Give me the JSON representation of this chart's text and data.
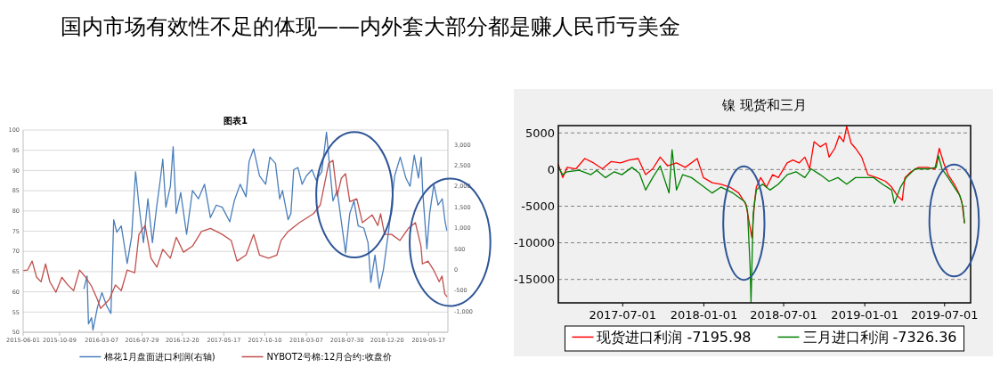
{
  "chart_data": [
    {
      "type": "line",
      "title": "图表1",
      "annotations": [
        "国内市场有效性不足的体现——内外套大部分都是赚人民币亏美金"
      ],
      "xlim": [
        "2015-06-01",
        "2019-07-25"
      ],
      "xticks": [
        "2015-06-01",
        "2015-10-09",
        "2016-03-07",
        "2016-07-29",
        "2016-12-20",
        "2017-05-17",
        "2017-10-10",
        "2018-03-07",
        "2018-07-30",
        "2018-12-20",
        "2019-05-17"
      ],
      "ylim": [
        50,
        100
      ],
      "yticks": [
        50,
        55,
        60,
        65,
        70,
        75,
        80,
        85,
        90,
        95,
        100
      ],
      "y2lim": [
        -1500,
        3350
      ],
      "y2ticks": [
        {
          "value": -1000,
          "label": "-1,000"
        },
        {
          "value": -500,
          "label": "-500"
        },
        {
          "value": 0,
          "label": "0"
        },
        {
          "value": 500,
          "label": "500"
        },
        {
          "value": 1000,
          "label": "1,000"
        },
        {
          "value": 1500,
          "label": "1,500"
        },
        {
          "value": 2000,
          "label": "2,000"
        },
        {
          "value": 2500,
          "label": "2,500"
        },
        {
          "value": 3000,
          "label": "3,000"
        }
      ],
      "grid": "y",
      "legend": "bottom",
      "series": [
        {
          "name": "棉花1月盘面进口利润(右轴)",
          "color": "#4a7ebb",
          "axis": "y2",
          "x": [
            "2016-01-04",
            "2016-01-15",
            "2016-01-20",
            "2016-01-31",
            "2016-02-05",
            "2016-02-21",
            "2016-03-08",
            "2016-03-24",
            "2016-04-09",
            "2016-04-19",
            "2016-04-30",
            "2016-05-16",
            "2016-06-06",
            "2016-06-22",
            "2016-07-06",
            "2016-07-18",
            "2016-08-03",
            "2016-08-19",
            "2016-09-04",
            "2016-09-20",
            "2016-10-01",
            "2016-10-11",
            "2016-10-22",
            "2016-11-07",
            "2016-11-17",
            "2016-11-28",
            "2016-12-14",
            "2017-01-04",
            "2017-01-25",
            "2017-02-15",
            "2017-03-09",
            "2017-03-30",
            "2017-04-20",
            "2017-05-11",
            "2017-06-07",
            "2017-06-23",
            "2017-07-14",
            "2017-08-04",
            "2017-08-15",
            "2017-08-31",
            "2017-09-21",
            "2017-10-13",
            "2017-10-28",
            "2017-11-17",
            "2017-12-02",
            "2017-12-12",
            "2018-01-01",
            "2018-01-11",
            "2018-01-21",
            "2018-02-05",
            "2018-02-20",
            "2018-03-07",
            "2018-03-27",
            "2018-04-11",
            "2018-05-01",
            "2018-05-18",
            "2018-05-26",
            "2018-06-10",
            "2018-06-25",
            "2018-07-10",
            "2018-07-25",
            "2018-08-09",
            "2018-08-24",
            "2018-09-08",
            "2018-09-28",
            "2018-10-13",
            "2018-10-23",
            "2018-11-07",
            "2018-11-22",
            "2018-12-07",
            "2018-12-27",
            "2019-01-16",
            "2019-02-05",
            "2019-02-25",
            "2019-03-12",
            "2019-03-27",
            "2019-04-11",
            "2019-04-21",
            "2019-04-26",
            "2019-05-11",
            "2019-05-21",
            "2019-06-05",
            "2019-06-20",
            "2019-07-05",
            "2019-07-15",
            "2019-07-21"
          ],
          "values": [
            -450,
            -150,
            -1300,
            -1150,
            -1450,
            -900,
            -550,
            -850,
            -1050,
            1200,
            900,
            1050,
            150,
            800,
            2350,
            1550,
            650,
            1700,
            650,
            1550,
            2100,
            2650,
            1500,
            2000,
            2950,
            1350,
            1850,
            850,
            1900,
            1700,
            2050,
            1250,
            1550,
            1500,
            1150,
            1650,
            2050,
            1750,
            2600,
            2900,
            2250,
            2050,
            2700,
            2550,
            1700,
            1900,
            1200,
            1350,
            2400,
            2450,
            2050,
            2250,
            2400,
            2150,
            2350,
            3300,
            2700,
            1650,
            1900,
            1150,
            400,
            1350,
            1650,
            1050,
            1000,
            650,
            -300,
            350,
            -450,
            0,
            1000,
            2250,
            2700,
            2200,
            2000,
            2750,
            2200,
            2700,
            1900,
            500,
            1350,
            2050,
            1550,
            1700,
            1150,
            950
          ]
        },
        {
          "name": "NYBOT2号棉:12月合约:收盘价",
          "color": "#c0504d",
          "x": [
            "2015-06-01",
            "2015-06-17",
            "2015-07-03",
            "2015-07-19",
            "2015-08-04",
            "2015-08-20",
            "2015-09-04",
            "2015-09-26",
            "2015-10-17",
            "2015-11-07",
            "2015-11-28",
            "2015-12-19",
            "2016-01-10",
            "2016-01-31",
            "2016-02-21",
            "2016-03-03",
            "2016-04-03",
            "2016-04-25",
            "2016-05-16",
            "2016-06-06",
            "2016-07-03",
            "2016-07-18",
            "2016-08-09",
            "2016-08-30",
            "2016-09-20",
            "2016-10-11",
            "2016-11-07",
            "2016-11-28",
            "2016-12-24",
            "2017-01-25",
            "2017-02-26",
            "2017-03-30",
            "2017-05-11",
            "2017-06-12",
            "2017-07-03",
            "2017-08-04",
            "2017-08-31",
            "2017-09-21",
            "2017-10-23",
            "2017-11-22",
            "2017-12-07",
            "2018-01-01",
            "2018-02-10",
            "2018-04-01",
            "2018-04-26",
            "2018-05-26",
            "2018-06-10",
            "2018-06-25",
            "2018-07-10",
            "2018-07-25",
            "2018-08-09",
            "2018-09-03",
            "2018-09-23",
            "2018-10-28",
            "2018-11-17",
            "2018-11-27",
            "2018-12-11",
            "2019-01-05",
            "2019-02-04",
            "2019-03-06",
            "2019-03-31",
            "2019-04-20",
            "2019-04-25",
            "2019-05-15",
            "2019-06-04",
            "2019-06-24",
            "2019-07-04",
            "2019-07-14",
            "2019-07-22"
          ],
          "values": [
            65.3,
            65.4,
            67.6,
            63.6,
            62.5,
            66.9,
            62.5,
            59.9,
            63.6,
            61.7,
            60.3,
            65.4,
            63.6,
            61.4,
            58.1,
            55.9,
            58.1,
            61.7,
            60.3,
            65.4,
            64.7,
            74.2,
            76.4,
            68.3,
            66.1,
            70.5,
            68.3,
            73.5,
            69.8,
            71.3,
            74.9,
            75.7,
            74.2,
            72.7,
            67.6,
            69.1,
            74.2,
            69.1,
            68.3,
            69.1,
            72.7,
            74.9,
            77.1,
            79.3,
            81.5,
            91.8,
            92.5,
            83.7,
            88.1,
            89.2,
            82.3,
            83.0,
            77.1,
            79.0,
            76.4,
            79.3,
            74.2,
            74.2,
            72.7,
            75.7,
            77.1,
            71.3,
            66.9,
            67.6,
            65.4,
            62.5,
            63.9,
            59.5,
            58.8
          ]
        }
      ]
    },
    {
      "type": "line",
      "title": "镍 现货和三月",
      "xlim": [
        "2017-02-05",
        "2019-08-29"
      ],
      "xticks": [
        "2017-07-01",
        "2018-01-01",
        "2018-07-01",
        "2019-01-01",
        "2019-07-01"
      ],
      "ylim": [
        -18200,
        6000
      ],
      "yticks": [
        -15000,
        -10000,
        -5000,
        0,
        5000
      ],
      "grid": "y",
      "legend": "bottom",
      "series": [
        {
          "name": "现货进口利润 -7195.98",
          "color": "#ff0000",
          "x": [
            "2017-02-05",
            "2017-02-15",
            "2017-02-25",
            "2017-03-17",
            "2017-04-06",
            "2017-04-26",
            "2017-05-16",
            "2017-06-05",
            "2017-06-26",
            "2017-07-16",
            "2017-08-05",
            "2017-08-22",
            "2017-09-07",
            "2017-09-24",
            "2017-10-11",
            "2017-10-31",
            "2017-11-20",
            "2017-12-17",
            "2017-12-31",
            "2018-01-20",
            "2018-02-09",
            "2018-03-01",
            "2018-03-21",
            "2018-04-07",
            "2018-04-14",
            "2018-04-20",
            "2018-04-26",
            "2018-04-30",
            "2018-05-10",
            "2018-05-23",
            "2018-06-06",
            "2018-06-19",
            "2018-07-09",
            "2018-07-22",
            "2018-08-05",
            "2018-08-18",
            "2018-08-29",
            "2018-09-08",
            "2018-09-22",
            "2018-10-05",
            "2018-10-12",
            "2018-10-25",
            "2018-11-04",
            "2018-11-14",
            "2018-11-21",
            "2018-12-01",
            "2018-12-11",
            "2018-12-25",
            "2019-01-08",
            "2019-01-28",
            "2019-02-17",
            "2019-03-03",
            "2019-03-16",
            "2019-03-27",
            "2019-04-02",
            "2019-04-16",
            "2019-05-03",
            "2019-05-23",
            "2019-06-09",
            "2019-06-19",
            "2019-06-29",
            "2019-07-09",
            "2019-07-23",
            "2019-08-02",
            "2019-08-09",
            "2019-08-15"
          ],
          "values": [
            700,
            -1100,
            300,
            100,
            1500,
            900,
            100,
            1100,
            900,
            1300,
            1500,
            -700,
            100,
            1700,
            500,
            900,
            300,
            1500,
            -1100,
            -1800,
            -2000,
            -2400,
            -3200,
            -4800,
            -7300,
            -9300,
            -4400,
            -2400,
            -1100,
            -2400,
            -700,
            -1100,
            900,
            1300,
            900,
            1700,
            100,
            3800,
            3100,
            3600,
            1700,
            2900,
            4600,
            3800,
            5900,
            3600,
            2900,
            1700,
            -700,
            -1100,
            -1600,
            -2400,
            -3600,
            -4200,
            -1100,
            -300,
            300,
            300,
            100,
            2900,
            900,
            -700,
            -2000,
            -3200,
            -4400,
            -7200
          ]
        },
        {
          "name": "三月进口利润 -7326.36",
          "color": "#008000",
          "x": [
            "2017-02-05",
            "2017-02-15",
            "2017-02-25",
            "2017-03-24",
            "2017-04-20",
            "2017-05-03",
            "2017-05-23",
            "2017-06-12",
            "2017-06-29",
            "2017-07-22",
            "2017-08-08",
            "2017-08-22",
            "2017-09-07",
            "2017-09-24",
            "2017-10-14",
            "2017-10-21",
            "2017-10-31",
            "2017-11-14",
            "2017-12-04",
            "2017-12-24",
            "2018-01-20",
            "2018-02-09",
            "2018-03-08",
            "2018-04-04",
            "2018-04-10",
            "2018-04-16",
            "2018-04-18",
            "2018-04-23",
            "2018-04-30",
            "2018-05-14",
            "2018-05-31",
            "2018-06-19",
            "2018-07-09",
            "2018-07-29",
            "2018-08-18",
            "2018-09-01",
            "2018-09-22",
            "2018-10-12",
            "2018-11-01",
            "2018-11-21",
            "2018-12-11",
            "2019-01-01",
            "2019-01-21",
            "2019-02-10",
            "2019-03-03",
            "2019-03-09",
            "2019-03-23",
            "2019-04-05",
            "2019-04-25",
            "2019-05-23",
            "2019-06-12",
            "2019-06-17",
            "2019-06-25",
            "2019-07-09",
            "2019-07-23",
            "2019-08-05",
            "2019-08-12",
            "2019-08-15"
          ],
          "values": [
            300,
            -700,
            -300,
            -100,
            -700,
            -100,
            -1100,
            -300,
            -700,
            300,
            -500,
            -2800,
            -1100,
            500,
            -3200,
            2700,
            -2800,
            -700,
            -1100,
            -2000,
            -3200,
            -2400,
            -3200,
            -4400,
            -5600,
            -13400,
            -18100,
            -6000,
            -2800,
            -2000,
            -2800,
            -2000,
            -700,
            -300,
            -1100,
            100,
            -700,
            -1600,
            -1100,
            -2000,
            -1100,
            -1100,
            -1100,
            -2000,
            -2800,
            -4600,
            -2400,
            -1100,
            100,
            100,
            300,
            1900,
            100,
            -1100,
            -2400,
            -3600,
            -5200,
            -7300
          ]
        }
      ]
    }
  ]
}
